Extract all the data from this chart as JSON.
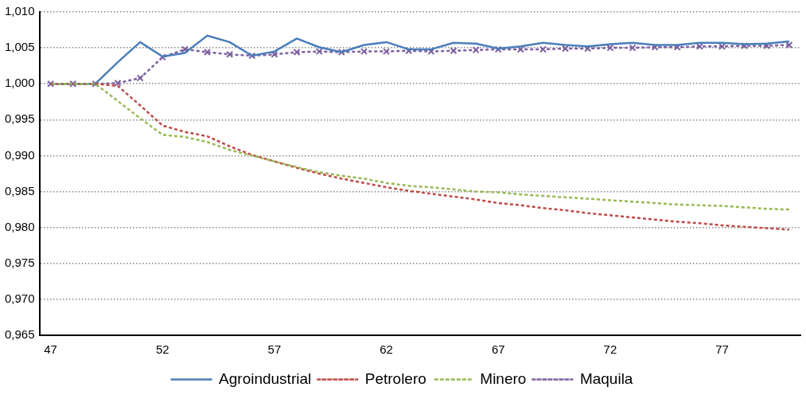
{
  "chart_data": {
    "type": "line",
    "categories": [
      "47",
      null,
      null,
      null,
      null,
      "52",
      null,
      null,
      null,
      null,
      "57",
      null,
      null,
      null,
      null,
      "62",
      null,
      null,
      null,
      null,
      "67",
      null,
      null,
      null,
      null,
      "72",
      null,
      null,
      null,
      null,
      "77",
      null,
      null,
      null
    ],
    "series": [
      {
        "name": "Agroindustrial",
        "color": "#4a7ebb",
        "line_style": "solid",
        "marker": "none",
        "values": [
          1.0,
          1.0,
          1.0,
          1.003,
          1.0058,
          1.0038,
          1.0043,
          1.0067,
          1.0058,
          1.0039,
          1.0045,
          1.0063,
          1.0051,
          1.0044,
          1.0054,
          1.0058,
          1.0048,
          1.0048,
          1.0057,
          1.0056,
          1.0049,
          1.0052,
          1.0057,
          1.0054,
          1.0052,
          1.0055,
          1.0057,
          1.0054,
          1.0054,
          1.0057,
          1.0057,
          1.0055,
          1.0056,
          1.0059
        ]
      },
      {
        "name": "Petrolero",
        "color": "#be4b48",
        "line_style": "dashed",
        "marker": "none",
        "values": [
          1.0,
          1.0,
          1.0,
          0.9997,
          0.997,
          0.9942,
          0.9933,
          0.9927,
          0.9913,
          0.9901,
          0.9892,
          0.9883,
          0.9875,
          0.9868,
          0.9862,
          0.9856,
          0.9851,
          0.9847,
          0.9843,
          0.9839,
          0.9834,
          0.9831,
          0.9827,
          0.9824,
          0.982,
          0.9817,
          0.9814,
          0.9811,
          0.9808,
          0.9806,
          0.9803,
          0.9801,
          0.9799,
          0.9797
        ]
      },
      {
        "name": "Minero",
        "color": "#98b954",
        "line_style": "dashed",
        "marker": "none",
        "values": [
          1.0,
          1.0,
          1.0,
          0.9976,
          0.9952,
          0.9929,
          0.9926,
          0.9919,
          0.9908,
          0.99,
          0.9892,
          0.9884,
          0.9877,
          0.9872,
          0.9868,
          0.9862,
          0.9858,
          0.9856,
          0.9853,
          0.985,
          0.9849,
          0.9846,
          0.9844,
          0.9842,
          0.984,
          0.9838,
          0.9836,
          0.9834,
          0.9832,
          0.9831,
          0.983,
          0.9828,
          0.9826,
          0.9825
        ]
      },
      {
        "name": "Maquila",
        "color": "#7d60a0",
        "line_style": "dashed",
        "marker": "cross",
        "values": [
          1.0,
          1.0,
          1.0,
          1.0001,
          1.0008,
          1.0037,
          1.0048,
          1.0044,
          1.0041,
          1.0039,
          1.0041,
          1.0044,
          1.0045,
          1.0044,
          1.0045,
          1.0045,
          1.0046,
          1.0045,
          1.0046,
          1.0047,
          1.0048,
          1.0048,
          1.0048,
          1.0049,
          1.0049,
          1.005,
          1.005,
          1.0051,
          1.0051,
          1.0052,
          1.0052,
          1.0053,
          1.0053,
          1.0054
        ]
      }
    ],
    "ylim": [
      0.965,
      1.01
    ],
    "yticks": [
      {
        "value": 0.965,
        "label": "0,965"
      },
      {
        "value": 0.97,
        "label": "0,970"
      },
      {
        "value": 0.975,
        "label": "0,975"
      },
      {
        "value": 0.98,
        "label": "0,980"
      },
      {
        "value": 0.985,
        "label": "0,985"
      },
      {
        "value": 0.99,
        "label": "0,990"
      },
      {
        "value": 0.995,
        "label": "0,995"
      },
      {
        "value": 1.0,
        "label": "1,000"
      },
      {
        "value": 1.005,
        "label": "1,005"
      },
      {
        "value": 1.01,
        "label": "1,010"
      }
    ],
    "grid": "y",
    "legend": "bottom"
  }
}
